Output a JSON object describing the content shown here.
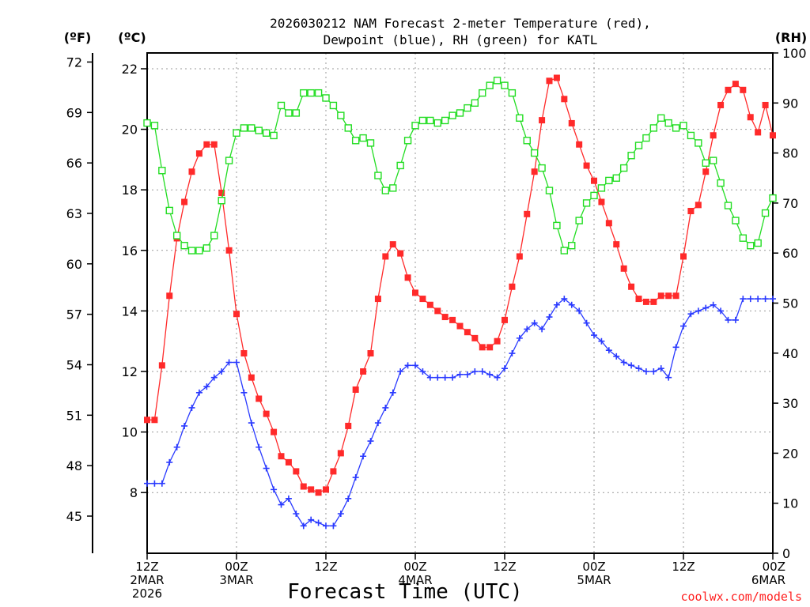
{
  "chart_data": {
    "type": "line",
    "title_line1": "2026030212 NAM Forecast 2-meter Temperature (red),",
    "title_line2": "Dewpoint (blue), RH (green) for KATL",
    "xlabel": "Forecast Time (UTC)",
    "credit": "coolwx.com/models",
    "unit_f": "(ºF)",
    "unit_c": "(ºC)",
    "unit_rh": "(RH)",
    "x_hours": [
      0,
      1,
      2,
      3,
      4,
      5,
      6,
      7,
      8,
      9,
      10,
      11,
      12,
      13,
      14,
      15,
      16,
      17,
      18,
      19,
      20,
      21,
      22,
      23,
      24,
      25,
      26,
      27,
      28,
      29,
      30,
      31,
      32,
      33,
      34,
      35,
      36,
      37,
      38,
      39,
      40,
      41,
      42,
      43,
      44,
      45,
      46,
      47,
      48,
      49,
      50,
      51,
      52,
      53,
      54,
      55,
      56,
      57,
      58,
      59,
      60,
      61,
      62,
      63,
      64,
      65,
      66,
      67,
      68,
      69,
      70,
      71,
      72,
      73,
      74,
      75,
      76,
      77,
      78,
      79,
      80,
      81,
      82,
      83,
      84
    ],
    "x_ticks": [
      {
        "hour": 0,
        "lines": [
          "12Z",
          "2MAR",
          "2026"
        ]
      },
      {
        "hour": 12,
        "lines": [
          "00Z",
          "3MAR"
        ]
      },
      {
        "hour": 24,
        "lines": [
          "12Z"
        ]
      },
      {
        "hour": 36,
        "lines": [
          "00Z",
          "4MAR"
        ]
      },
      {
        "hour": 48,
        "lines": [
          "12Z"
        ]
      },
      {
        "hour": 60,
        "lines": [
          "00Z",
          "5MAR"
        ]
      },
      {
        "hour": 72,
        "lines": [
          "12Z"
        ]
      },
      {
        "hour": 84,
        "lines": [
          "00Z",
          "6MAR"
        ]
      }
    ],
    "y_left_c": {
      "label": "(ºC)",
      "min": 6.0,
      "max": 22.5,
      "ticks": [
        8,
        10,
        12,
        14,
        16,
        18,
        20,
        22
      ]
    },
    "y_left_f": {
      "label": "(ºF)",
      "ticks": [
        45,
        48,
        51,
        54,
        57,
        60,
        63,
        66,
        69,
        72
      ]
    },
    "y_right_rh": {
      "label": "(RH)",
      "min": 0,
      "max": 100,
      "ticks": [
        0,
        10,
        20,
        30,
        40,
        50,
        60,
        70,
        80,
        90,
        100
      ]
    },
    "grid": true,
    "series": [
      {
        "name": "Temperature",
        "axis": "C",
        "color": "#ff2a2a",
        "marker": "filled-square",
        "values": [
          10.4,
          10.4,
          12.2,
          14.5,
          16.4,
          17.6,
          18.6,
          19.2,
          19.5,
          19.5,
          17.9,
          16.0,
          13.9,
          12.6,
          11.8,
          11.1,
          10.6,
          10.0,
          9.2,
          9.0,
          8.7,
          8.2,
          8.1,
          8.0,
          8.1,
          8.7,
          9.3,
          10.2,
          11.4,
          12.0,
          12.6,
          14.4,
          15.8,
          16.2,
          15.9,
          15.1,
          14.6,
          14.4,
          14.2,
          14.0,
          13.8,
          13.7,
          13.5,
          13.3,
          13.1,
          12.8,
          12.8,
          13.0,
          13.7,
          14.8,
          15.8,
          17.2,
          18.6,
          20.3,
          21.6,
          21.7,
          21.0,
          20.2,
          19.5,
          18.8,
          18.3,
          17.6,
          16.9,
          16.2,
          15.4,
          14.8,
          14.4,
          14.3,
          14.3,
          14.5,
          14.5,
          14.5,
          15.8,
          17.3,
          17.5,
          18.6,
          19.8,
          20.8,
          21.3,
          21.5,
          21.3,
          20.4,
          19.9,
          20.8,
          19.8
        ]
      },
      {
        "name": "Dewpoint",
        "axis": "C",
        "color": "#2a3aff",
        "marker": "plus",
        "values": [
          8.3,
          8.3,
          8.3,
          9.0,
          9.5,
          10.2,
          10.8,
          11.3,
          11.5,
          11.8,
          12.0,
          12.3,
          12.3,
          11.3,
          10.3,
          9.5,
          8.8,
          8.1,
          7.6,
          7.8,
          7.3,
          6.9,
          7.1,
          7.0,
          6.9,
          6.9,
          7.3,
          7.8,
          8.5,
          9.2,
          9.7,
          10.3,
          10.8,
          11.3,
          12.0,
          12.2,
          12.2,
          12.0,
          11.8,
          11.8,
          11.8,
          11.8,
          11.9,
          11.9,
          12.0,
          12.0,
          11.9,
          11.8,
          12.1,
          12.6,
          13.1,
          13.4,
          13.6,
          13.4,
          13.8,
          14.2,
          14.4,
          14.2,
          14.0,
          13.6,
          13.2,
          13.0,
          12.7,
          12.5,
          12.3,
          12.2,
          12.1,
          12.0,
          12.0,
          12.1,
          11.8,
          12.8,
          13.5,
          13.9,
          14.0,
          14.1,
          14.2,
          14.0,
          13.7,
          13.7,
          14.4,
          14.4,
          14.4,
          14.4,
          14.4
        ]
      },
      {
        "name": "RH",
        "axis": "RH",
        "color": "#22dd22",
        "marker": "open-square",
        "values": [
          86,
          85.5,
          76.5,
          68.5,
          63.5,
          61.5,
          60.5,
          60.5,
          61,
          63.5,
          70.5,
          78.5,
          84,
          85,
          85,
          84.5,
          84,
          83.5,
          89.5,
          88,
          88,
          92,
          92,
          92,
          91,
          89.5,
          87.5,
          85,
          82.5,
          83,
          82,
          75.5,
          72.5,
          73,
          77.5,
          82.5,
          85.5,
          86.5,
          86.5,
          86,
          86.5,
          87.5,
          88,
          89,
          90,
          92,
          93.5,
          94.5,
          93.5,
          92,
          87,
          82.5,
          80,
          77,
          72.5,
          65.5,
          60.5,
          61.5,
          66.5,
          70,
          71.5,
          73,
          74.5,
          75,
          77,
          79.5,
          81.5,
          83,
          85,
          87,
          86,
          85,
          85.5,
          83.5,
          82,
          78,
          78.5,
          74,
          69.5,
          66.5,
          63,
          61.5,
          62,
          68,
          71
        ]
      }
    ]
  }
}
